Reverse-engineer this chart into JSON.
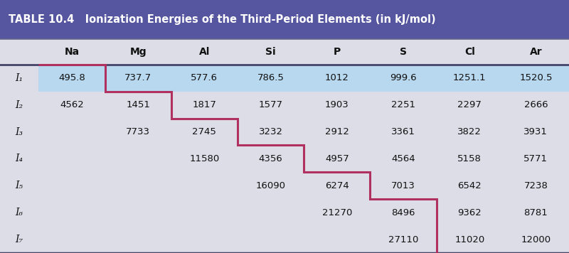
{
  "title": "TABLE 10.4   Ionization Energies of the Third-Period Elements (in kJ/mol)",
  "header_bg": "#5555a0",
  "header_fg": "#ffffff",
  "subheader_bg": "#dddde8",
  "row_bg_odd": "#f0f0e8",
  "row_bg_even": "#f0f0e8",
  "highlight_bg": "#b8d8f0",
  "staircase_color": "#b03060",
  "columns": [
    "Na",
    "Mg",
    "Al",
    "Si",
    "P",
    "S",
    "Cl",
    "Ar"
  ],
  "row_labels": [
    "I₁",
    "I₂",
    "I₃",
    "I₄",
    "I₅",
    "I₆",
    "I₇"
  ],
  "data": [
    [
      "495.8",
      "737.7",
      "577.6",
      "786.5",
      "1012",
      "999.6",
      "1251.1",
      "1520.5"
    ],
    [
      "4562",
      "1451",
      "1817",
      "1577",
      "1903",
      "2251",
      "2297",
      "2666"
    ],
    [
      "",
      "7733",
      "2745",
      "3232",
      "2912",
      "3361",
      "3822",
      "3931"
    ],
    [
      "",
      "",
      "11580",
      "4356",
      "4957",
      "4564",
      "5158",
      "5771"
    ],
    [
      "",
      "",
      "",
      "16090",
      "6274",
      "7013",
      "6542",
      "7238"
    ],
    [
      "",
      "",
      "",
      "",
      "21270",
      "8496",
      "9362",
      "8781"
    ],
    [
      "",
      "",
      "",
      "",
      "",
      "27110",
      "11020",
      "12000"
    ]
  ],
  "figsize": [
    8.0,
    3.56
  ],
  "dpi": 100,
  "title_fontsize": 10.5,
  "col_fontsize": 10,
  "data_fontsize": 9.5,
  "label_fontsize": 10
}
